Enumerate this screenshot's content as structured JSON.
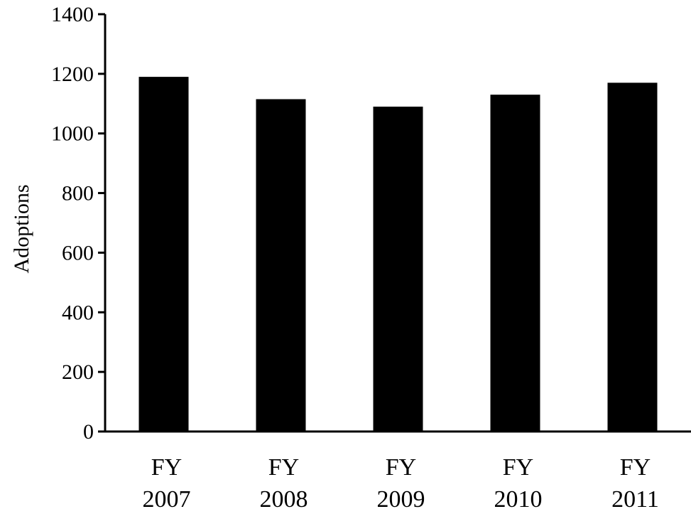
{
  "chart_data": {
    "type": "bar",
    "title": "",
    "xlabel": "",
    "ylabel": "Adoptions",
    "categories": [
      [
        "FY",
        "2007"
      ],
      [
        "FY",
        "2008"
      ],
      [
        "FY",
        "2009"
      ],
      [
        "FY",
        "2010"
      ],
      [
        "FY",
        "2011"
      ]
    ],
    "values": [
      1190,
      1115,
      1090,
      1130,
      1170
    ],
    "ylim": [
      0,
      1400
    ],
    "yticks": [
      "0",
      "200",
      "400",
      "600",
      "800",
      "1000",
      "1200",
      "1400"
    ],
    "grid": false,
    "legend": "none",
    "colors": {
      "bar": "#000000",
      "axis": "#000000"
    }
  }
}
